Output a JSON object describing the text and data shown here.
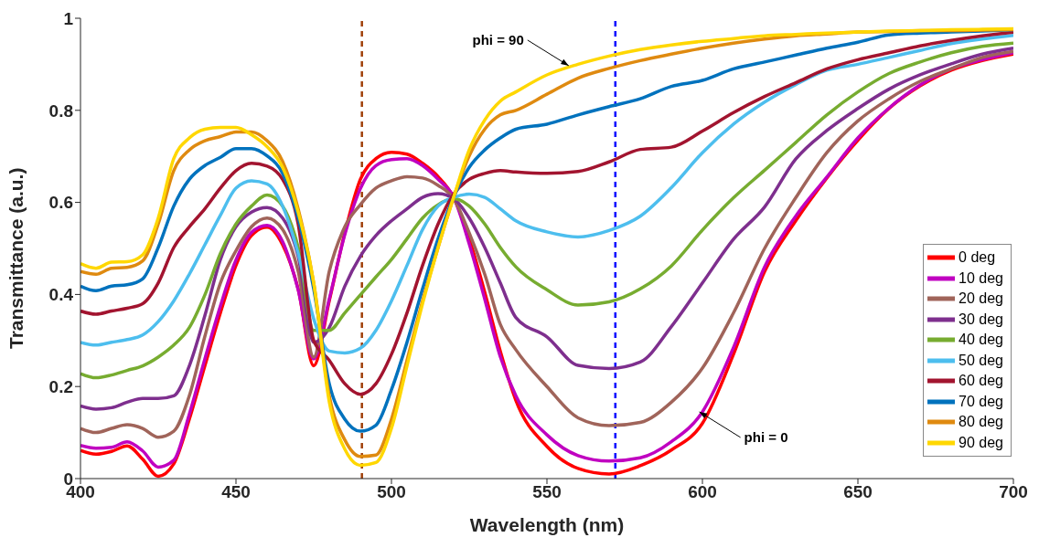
{
  "chart_data": {
    "type": "line",
    "xlabel": "Wavelength (nm)",
    "ylabel": "Transmittance (a.u.)",
    "x": [
      400,
      405,
      410,
      415,
      420,
      425,
      430,
      435,
      440,
      445,
      450,
      455,
      460,
      465,
      470,
      475,
      480,
      485,
      490,
      495,
      500,
      505,
      510,
      515,
      520,
      525,
      530,
      535,
      540,
      550,
      560,
      570,
      580,
      590,
      600,
      610,
      620,
      630,
      640,
      650,
      660,
      670,
      680,
      690,
      700
    ],
    "xlim": [
      400,
      700
    ],
    "xticks": [
      400,
      450,
      500,
      550,
      600,
      650,
      700
    ],
    "ylim": [
      0,
      1
    ],
    "yticks": [
      0,
      0.2,
      0.4,
      0.6,
      0.8,
      1
    ],
    "grid": false,
    "legend": "bottom right",
    "marker": "none",
    "line_style": "solid",
    "series": [
      {
        "name": "0 deg",
        "color": "#ff0000",
        "values": [
          0.061,
          0.053,
          0.059,
          0.071,
          0.042,
          0.005,
          0.032,
          0.129,
          0.245,
          0.36,
          0.463,
          0.528,
          0.546,
          0.508,
          0.412,
          0.245,
          0.386,
          0.534,
          0.65,
          0.695,
          0.709,
          0.705,
          0.685,
          0.656,
          0.611,
          0.521,
          0.405,
          0.277,
          0.17,
          0.07,
          0.022,
          0.01,
          0.028,
          0.062,
          0.12,
          0.27,
          0.45,
          0.56,
          0.653,
          0.735,
          0.804,
          0.853,
          0.887,
          0.908,
          0.922
        ]
      },
      {
        "name": "10 deg",
        "color": "#c000c0",
        "values": [
          0.072,
          0.066,
          0.068,
          0.08,
          0.06,
          0.025,
          0.04,
          0.14,
          0.26,
          0.375,
          0.475,
          0.535,
          0.55,
          0.515,
          0.41,
          0.26,
          0.39,
          0.53,
          0.63,
          0.68,
          0.693,
          0.695,
          0.68,
          0.65,
          0.611,
          0.51,
          0.39,
          0.265,
          0.18,
          0.095,
          0.05,
          0.038,
          0.045,
          0.08,
          0.145,
          0.285,
          0.46,
          0.57,
          0.655,
          0.74,
          0.805,
          0.855,
          0.89,
          0.91,
          0.925
        ]
      },
      {
        "name": "20 deg",
        "color": "#a0645a",
        "values": [
          0.109,
          0.1,
          0.109,
          0.117,
          0.109,
          0.09,
          0.103,
          0.18,
          0.309,
          0.425,
          0.495,
          0.547,
          0.566,
          0.541,
          0.45,
          0.264,
          0.45,
          0.547,
          0.595,
          0.631,
          0.647,
          0.656,
          0.653,
          0.637,
          0.608,
          0.534,
          0.444,
          0.335,
          0.28,
          0.2,
          0.132,
          0.115,
          0.122,
          0.166,
          0.24,
          0.36,
          0.5,
          0.61,
          0.708,
          0.777,
          0.825,
          0.863,
          0.89,
          0.915,
          0.928
        ]
      },
      {
        "name": "30 deg",
        "color": "#7e2f8e",
        "values": [
          0.158,
          0.151,
          0.154,
          0.166,
          0.174,
          0.174,
          0.18,
          0.245,
          0.354,
          0.476,
          0.547,
          0.579,
          0.589,
          0.566,
          0.483,
          0.296,
          0.328,
          0.418,
          0.483,
          0.528,
          0.56,
          0.586,
          0.611,
          0.619,
          0.608,
          0.566,
          0.502,
          0.425,
          0.35,
          0.308,
          0.246,
          0.239,
          0.253,
          0.33,
          0.425,
          0.52,
          0.59,
          0.694,
          0.756,
          0.804,
          0.846,
          0.877,
          0.901,
          0.922,
          0.935
        ]
      },
      {
        "name": "40 deg",
        "color": "#77ac30",
        "values": [
          0.228,
          0.219,
          0.225,
          0.235,
          0.245,
          0.264,
          0.29,
          0.328,
          0.399,
          0.489,
          0.553,
          0.592,
          0.616,
          0.592,
          0.502,
          0.322,
          0.322,
          0.36,
          0.399,
          0.438,
          0.476,
          0.521,
          0.566,
          0.595,
          0.608,
          0.592,
          0.553,
          0.502,
          0.46,
          0.41,
          0.377,
          0.384,
          0.412,
          0.462,
          0.54,
          0.61,
          0.67,
          0.73,
          0.79,
          0.84,
          0.88,
          0.905,
          0.925,
          0.939,
          0.946
        ]
      },
      {
        "name": "50 deg",
        "color": "#4dbeee",
        "values": [
          0.296,
          0.29,
          0.296,
          0.302,
          0.312,
          0.341,
          0.386,
          0.444,
          0.508,
          0.572,
          0.631,
          0.647,
          0.64,
          0.592,
          0.489,
          0.347,
          0.277,
          0.273,
          0.283,
          0.322,
          0.386,
          0.463,
          0.541,
          0.592,
          0.611,
          0.618,
          0.611,
          0.586,
          0.56,
          0.536,
          0.525,
          0.539,
          0.57,
          0.632,
          0.708,
          0.77,
          0.818,
          0.856,
          0.887,
          0.9,
          0.915,
          0.93,
          0.945,
          0.955,
          0.963
        ]
      },
      {
        "name": "60 deg",
        "color": "#a2142f",
        "values": [
          0.364,
          0.357,
          0.364,
          0.37,
          0.38,
          0.425,
          0.502,
          0.547,
          0.586,
          0.631,
          0.669,
          0.685,
          0.679,
          0.65,
          0.553,
          0.3,
          0.257,
          0.206,
          0.183,
          0.206,
          0.27,
          0.36,
          0.463,
          0.553,
          0.618,
          0.65,
          0.663,
          0.669,
          0.666,
          0.663,
          0.667,
          0.688,
          0.715,
          0.72,
          0.755,
          0.795,
          0.83,
          0.86,
          0.89,
          0.91,
          0.925,
          0.94,
          0.952,
          0.962,
          0.97
        ]
      },
      {
        "name": "70 deg",
        "color": "#0072bd",
        "values": [
          0.418,
          0.408,
          0.418,
          0.421,
          0.434,
          0.502,
          0.592,
          0.65,
          0.68,
          0.698,
          0.717,
          0.717,
          0.701,
          0.663,
          0.566,
          0.412,
          0.206,
          0.129,
          0.103,
          0.116,
          0.193,
          0.296,
          0.412,
          0.521,
          0.611,
          0.676,
          0.714,
          0.74,
          0.759,
          0.77,
          0.79,
          0.808,
          0.825,
          0.852,
          0.865,
          0.89,
          0.905,
          0.92,
          0.935,
          0.948,
          0.964,
          0.968,
          0.97,
          0.972,
          0.975
        ]
      },
      {
        "name": "80 deg",
        "color": "#df8a10",
        "values": [
          0.45,
          0.444,
          0.457,
          0.459,
          0.473,
          0.553,
          0.669,
          0.714,
          0.734,
          0.743,
          0.753,
          0.753,
          0.734,
          0.689,
          0.586,
          0.425,
          0.18,
          0.084,
          0.048,
          0.051,
          0.129,
          0.257,
          0.386,
          0.502,
          0.611,
          0.701,
          0.759,
          0.79,
          0.8,
          0.835,
          0.87,
          0.891,
          0.908,
          0.922,
          0.935,
          0.946,
          0.955,
          0.962,
          0.966,
          0.97,
          0.971,
          0.973,
          0.973,
          0.974,
          0.975
        ]
      },
      {
        "name": "90 deg",
        "color": "#ffd700",
        "values": [
          0.467,
          0.457,
          0.47,
          0.471,
          0.486,
          0.566,
          0.695,
          0.74,
          0.759,
          0.763,
          0.763,
          0.747,
          0.721,
          0.676,
          0.579,
          0.425,
          0.167,
          0.064,
          0.029,
          0.035,
          0.109,
          0.245,
          0.38,
          0.502,
          0.611,
          0.714,
          0.779,
          0.82,
          0.84,
          0.877,
          0.9,
          0.918,
          0.932,
          0.942,
          0.95,
          0.956,
          0.962,
          0.965,
          0.968,
          0.97,
          0.972,
          0.973,
          0.975,
          0.976,
          0.977
        ]
      }
    ],
    "ref_lines": [
      {
        "axis": "x",
        "value": 490.5,
        "color": "#a0400a",
        "line_style": "dashed"
      },
      {
        "axis": "x",
        "value": 572,
        "color": "#0000ff",
        "line_style": "dashed"
      }
    ],
    "annotations": [
      {
        "text": "phi = 90",
        "x": 557,
        "y": 0.897
      },
      {
        "text": "phi = 0",
        "x": 599,
        "y": 0.145
      }
    ]
  }
}
